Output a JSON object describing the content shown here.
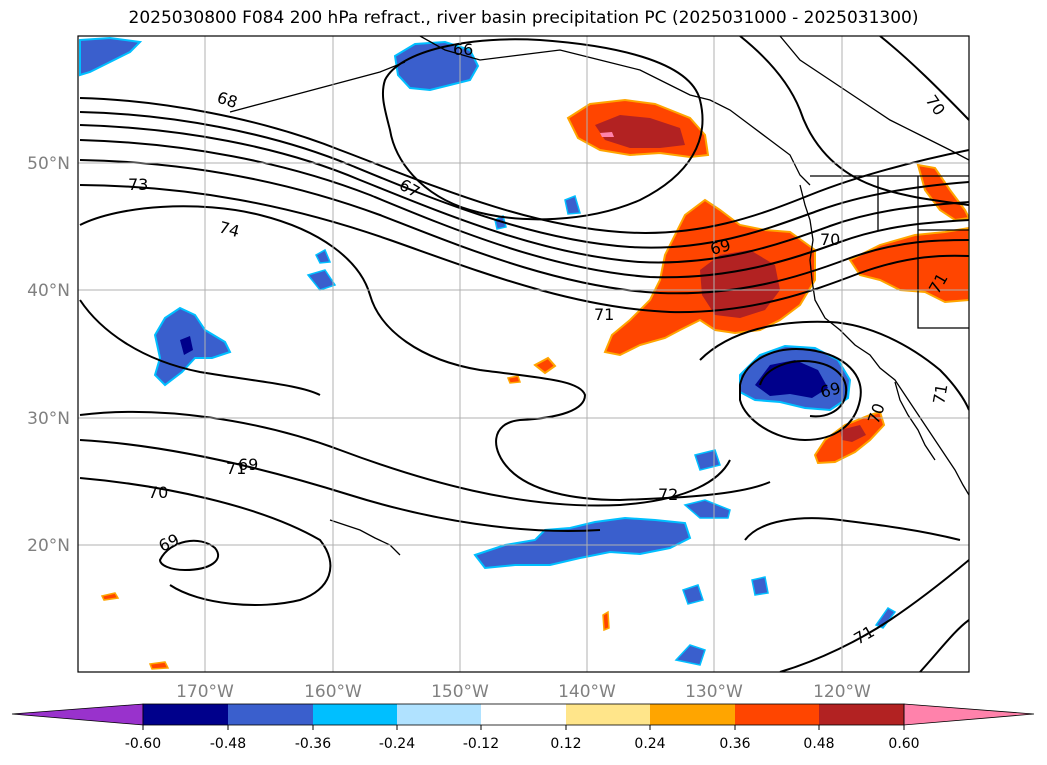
{
  "title": "2025030800 F084 200 hPa refract., river basin precipitation PC (2025031000 - 2025031300)",
  "map": {
    "lon_range": [
      -180,
      -110
    ],
    "lat_range": [
      10,
      60
    ],
    "lon_ticks": [
      {
        "value": -170,
        "label": "170°W"
      },
      {
        "value": -160,
        "label": "160°W"
      },
      {
        "value": -150,
        "label": "150°W"
      },
      {
        "value": -140,
        "label": "140°W"
      },
      {
        "value": -130,
        "label": "130°W"
      },
      {
        "value": -120,
        "label": "120°W"
      }
    ],
    "lat_ticks": [
      {
        "value": 20,
        "label": "20°N"
      },
      {
        "value": 30,
        "label": "30°N"
      },
      {
        "value": 40,
        "label": "40°N"
      },
      {
        "value": 50,
        "label": "50°N"
      }
    ],
    "gridlines": true
  },
  "contour_labels": [
    "66",
    "67",
    "68",
    "69",
    "69",
    "69",
    "69",
    "70",
    "70",
    "70",
    "70",
    "71",
    "71",
    "71",
    "71",
    "71",
    "72",
    "73",
    "74"
  ],
  "colorbar": {
    "levels": [
      "-0.60",
      "-0.48",
      "-0.36",
      "-0.24",
      "-0.12",
      "0.12",
      "0.24",
      "0.36",
      "0.48",
      "0.60"
    ],
    "colors": [
      "#9932cc",
      "#00008b",
      "#3a5fcd",
      "#00bfff",
      "#b0e2ff",
      "#ffffff",
      "#ffe58a",
      "#ffa500",
      "#ff4500",
      "#b22222",
      "#ff82ab"
    ],
    "extend": "both"
  }
}
